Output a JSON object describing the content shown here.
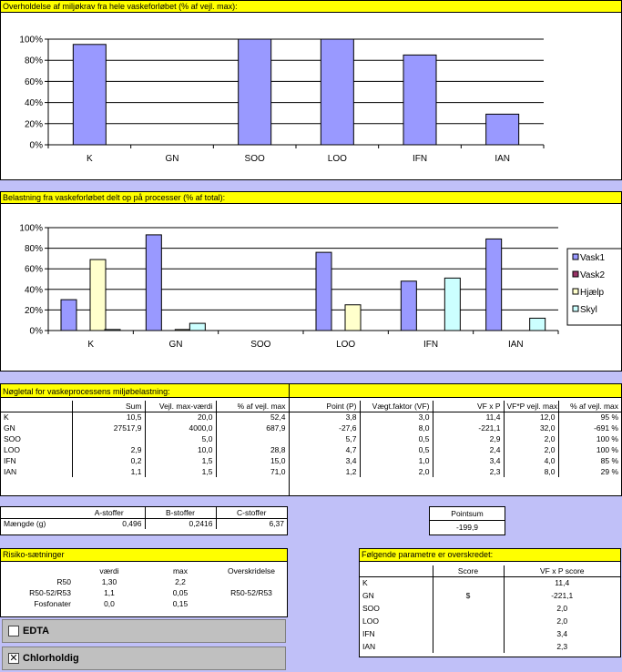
{
  "chart1": {
    "title": "Overholdelse af miljøkrav fra hele vaskeforløbet (% af vejl. max):",
    "chart_data": {
      "type": "bar",
      "categories": [
        "K",
        "GN",
        "SOO",
        "LOO",
        "IFN",
        "IAN"
      ],
      "values": [
        95,
        0,
        100,
        100,
        85,
        29
      ],
      "yticks": [
        "0%",
        "20%",
        "40%",
        "60%",
        "80%",
        "100%"
      ],
      "ylim": [
        0,
        100
      ],
      "color": "#9999ff",
      "grid": true
    }
  },
  "chart2": {
    "title": "Belastning fra vaskeforløbet delt op på processer (% af total):",
    "chart_data": {
      "type": "bar",
      "categories": [
        "K",
        "GN",
        "SOO",
        "LOO",
        "IFN",
        "IAN"
      ],
      "series": [
        {
          "name": "Vask1",
          "color": "#9999ff",
          "values": [
            30,
            93,
            0,
            76,
            48,
            89
          ]
        },
        {
          "name": "Vask2",
          "color": "#993366",
          "values": [
            0,
            0,
            0,
            0,
            0,
            0
          ]
        },
        {
          "name": "Hjælp",
          "color": "#ffffcc",
          "values": [
            69,
            1,
            0,
            25,
            0,
            0
          ]
        },
        {
          "name": "Skyl",
          "color": "#ccffff",
          "values": [
            1,
            7,
            0,
            0,
            51,
            12
          ]
        }
      ],
      "yticks": [
        "0%",
        "20%",
        "40%",
        "60%",
        "80%",
        "100%"
      ],
      "ylim": [
        0,
        100
      ],
      "legend": "right",
      "grid": true
    }
  },
  "table1": {
    "title": "Nøgletal for vaskeprocessens miljøbelastning:",
    "headers": [
      "",
      "Sum",
      "Vejl. max-værdi",
      "% af vejl. max",
      "Point (P)",
      "Vægt.faktor (VF)",
      "VF x P",
      "VF*P vejl. max",
      "% af vejl. max"
    ],
    "rows": [
      [
        "K",
        "10,5",
        "20,0",
        "52,4",
        "3,8",
        "3,0",
        "11,4",
        "12,0",
        "95 %"
      ],
      [
        "GN",
        "27517,9",
        "4000,0",
        "687,9",
        "-27,6",
        "8,0",
        "-221,1",
        "32,0",
        "-691 %"
      ],
      [
        "SOO",
        "",
        "5,0",
        "",
        "5,7",
        "0,5",
        "2,9",
        "2,0",
        "100 %"
      ],
      [
        "LOO",
        "2,9",
        "10,0",
        "28,8",
        "4,7",
        "0,5",
        "2,4",
        "2,0",
        "100 %"
      ],
      [
        "IFN",
        "0,2",
        "1,5",
        "15,0",
        "3,4",
        "1,0",
        "3,4",
        "4,0",
        "85 %"
      ],
      [
        "IAN",
        "1,1",
        "1,5",
        "71,0",
        "1,2",
        "2,0",
        "2,3",
        "8,0",
        "29 %"
      ]
    ]
  },
  "stoffer": {
    "headers": [
      "",
      "A-stoffer",
      "B-stoffer",
      "C-stoffer"
    ],
    "row_label": "Mængde (g)",
    "values": [
      "0,496",
      "0,2416",
      "6,37"
    ]
  },
  "pointsum": {
    "label": "Pointsum",
    "value": "-199,9"
  },
  "risiko": {
    "title": "Risiko-sætninger",
    "headers": [
      "",
      "værdi",
      "max",
      "Overskridelse"
    ],
    "rows": [
      [
        "R50",
        "1,30",
        "2,2",
        ""
      ],
      [
        "R50-52/R53",
        "1,1",
        "0,05",
        "R50-52/R53"
      ],
      [
        "Fosfonater",
        "0,0",
        "0,15",
        ""
      ]
    ]
  },
  "checkboxes": [
    {
      "label": "EDTA",
      "checked": false,
      "mark": ""
    },
    {
      "label": "Chlorholdig",
      "checked": true,
      "mark": "✕"
    }
  ],
  "exceeded": {
    "title": "Følgende parametre er overskredet:",
    "headers": [
      "",
      "Score",
      "VF x P score"
    ],
    "rows": [
      [
        "K",
        "",
        "11,4"
      ],
      [
        "GN",
        "$",
        "-221,1"
      ],
      [
        "SOO",
        "",
        "2,0"
      ],
      [
        "LOO",
        "",
        "2,0"
      ],
      [
        "IFN",
        "",
        "3,4"
      ],
      [
        "IAN",
        "",
        "2,3"
      ]
    ]
  }
}
